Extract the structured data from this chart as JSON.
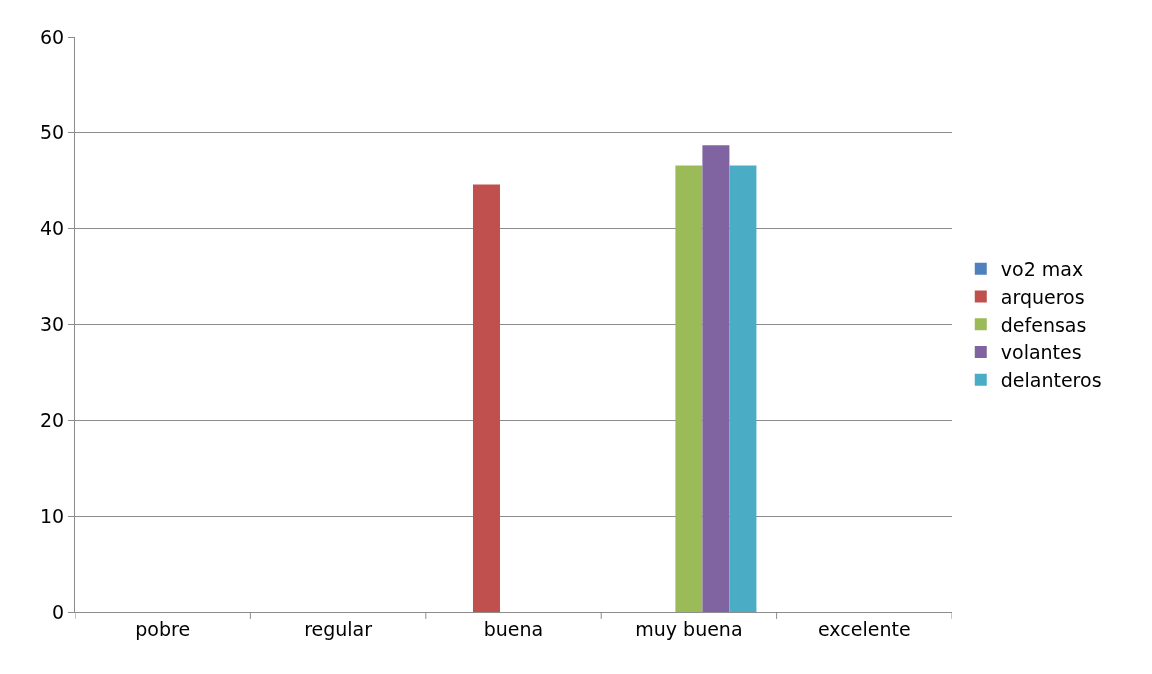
{
  "chart_data": {
    "type": "bar",
    "categories": [
      "pobre",
      "regular",
      "buena",
      "muy buena",
      "excelente"
    ],
    "series": [
      {
        "name": "vo2 max",
        "color": "#4f81bd",
        "values": [
          null,
          null,
          null,
          null,
          null
        ]
      },
      {
        "name": "arqueros",
        "color": "#c0504d",
        "values": [
          null,
          null,
          44.6,
          null,
          null
        ]
      },
      {
        "name": "defensas",
        "color": "#9bbb59",
        "values": [
          null,
          null,
          null,
          46.6,
          null
        ]
      },
      {
        "name": "volantes",
        "color": "#8064a2",
        "values": [
          null,
          null,
          null,
          48.7,
          null
        ]
      },
      {
        "name": "delanteros",
        "color": "#4bacc6",
        "values": [
          null,
          null,
          null,
          46.6,
          null
        ]
      }
    ],
    "ylim": [
      0,
      60
    ],
    "yticks": [
      0,
      10,
      20,
      30,
      40,
      50,
      60
    ],
    "grid": "y",
    "legend": "right"
  }
}
